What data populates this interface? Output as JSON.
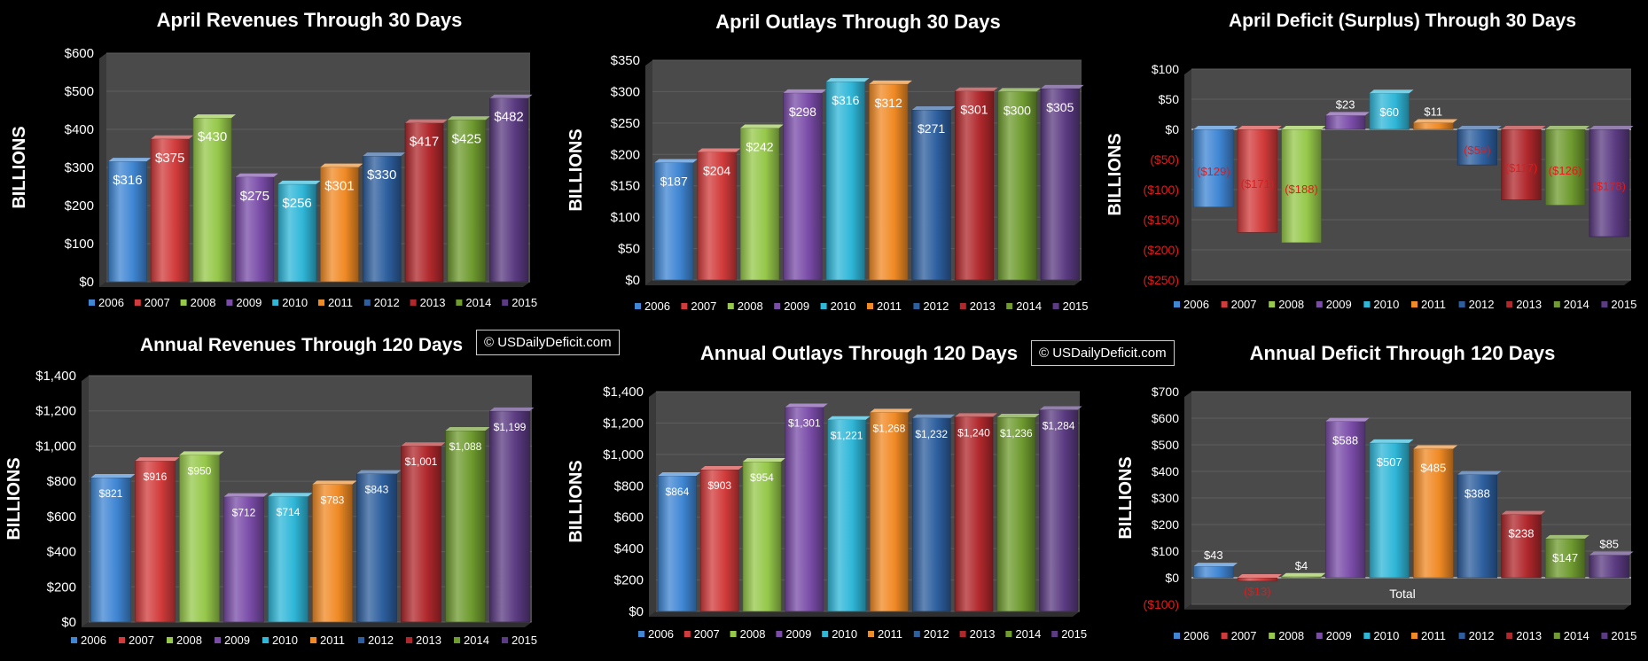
{
  "watermark": "© USDailyDeficit.com",
  "colors": [
    "#3f86d3",
    "#d23b3b",
    "#96c84a",
    "#7a4ca8",
    "#2fb7d8",
    "#f08a24",
    "#2d5f9e",
    "#b0282c",
    "#6f9b2f",
    "#5b3b82"
  ],
  "chart_data": [
    {
      "type": "bar",
      "title": "April Revenues Through 30 Days",
      "ylabel": "BILLIONS",
      "categories": [
        "2006",
        "2007",
        "2008",
        "2009",
        "2010",
        "2011",
        "2012",
        "2013",
        "2014",
        "2015"
      ],
      "values": [
        316,
        375,
        430,
        275,
        256,
        301,
        330,
        417,
        425,
        482
      ],
      "value_labels": [
        "$316",
        "$375",
        "$430",
        "$275",
        "$256",
        "$301",
        "$330",
        "$417",
        "$425",
        "$482"
      ],
      "ylim": [
        0,
        600
      ],
      "yticks": [
        "$0",
        "$100",
        "$200",
        "$300",
        "$400",
        "$500",
        "$600"
      ],
      "legend": [
        "2006",
        "2007",
        "2008",
        "2009",
        "2010",
        "2011",
        "2012",
        "2013",
        "2014",
        "2015"
      ]
    },
    {
      "type": "bar",
      "title": "April Outlays Through 30 Days",
      "ylabel": "BILLIONS",
      "categories": [
        "2006",
        "2007",
        "2008",
        "2009",
        "2010",
        "2011",
        "2012",
        "2013",
        "2014",
        "2015"
      ],
      "values": [
        187,
        204,
        242,
        298,
        316,
        312,
        271,
        301,
        300,
        305
      ],
      "value_labels": [
        "$187",
        "$204",
        "$242",
        "$298",
        "$316",
        "$312",
        "$271",
        "$301",
        "$300",
        "$305"
      ],
      "ylim": [
        0,
        350
      ],
      "yticks": [
        "$0",
        "$50",
        "$100",
        "$150",
        "$200",
        "$250",
        "$300",
        "$350"
      ],
      "legend": [
        "2006",
        "2007",
        "2008",
        "2009",
        "2010",
        "2011",
        "2012",
        "2013",
        "2014",
        "2015"
      ]
    },
    {
      "type": "bar",
      "title": "April Deficit (Surplus) Through 30 Days",
      "ylabel": "BILLIONS",
      "categories": [
        "2006",
        "2007",
        "2008",
        "2009",
        "2010",
        "2011",
        "2012",
        "2013",
        "2014",
        "2015"
      ],
      "values": [
        -129,
        -171,
        -188,
        23,
        60,
        11,
        -59,
        -117,
        -126,
        -178
      ],
      "value_labels": [
        "($129)",
        "($171)",
        "($188)",
        "$23",
        "$60",
        "$11",
        "($59)",
        "($117)",
        "($126)",
        "($178)"
      ],
      "ylim": [
        -250,
        100
      ],
      "yticks": [
        "($250)",
        "($200)",
        "($150)",
        "($100)",
        "($50)",
        "$0",
        "$50",
        "$100"
      ],
      "legend": [
        "2006",
        "2007",
        "2008",
        "2009",
        "2010",
        "2011",
        "2012",
        "2013",
        "2014",
        "2015"
      ]
    },
    {
      "type": "bar",
      "title": "Annual Revenues Through 120 Days",
      "ylabel": "BILLIONS",
      "categories": [
        "2006",
        "2007",
        "2008",
        "2009",
        "2010",
        "2011",
        "2012",
        "2013",
        "2014",
        "2015"
      ],
      "values": [
        821,
        916,
        950,
        712,
        714,
        783,
        843,
        1001,
        1088,
        1199
      ],
      "value_labels": [
        "$821",
        "$916",
        "$950",
        "$712",
        "$714",
        "$783",
        "$843",
        "$1,001",
        "$1,088",
        "$1,199"
      ],
      "ylim": [
        0,
        1400
      ],
      "yticks": [
        "$0",
        "$200",
        "$400",
        "$600",
        "$800",
        "$1,000",
        "$1,200",
        "$1,400"
      ],
      "legend": [
        "2006",
        "2007",
        "2008",
        "2009",
        "2010",
        "2011",
        "2012",
        "2013",
        "2014",
        "2015"
      ]
    },
    {
      "type": "bar",
      "title": "Annual Outlays Through 120 Days",
      "ylabel": "BILLIONS",
      "categories": [
        "2006",
        "2007",
        "2008",
        "2009",
        "2010",
        "2011",
        "2012",
        "2013",
        "2014",
        "2015"
      ],
      "values": [
        864,
        903,
        954,
        1301,
        1221,
        1268,
        1232,
        1240,
        1236,
        1284
      ],
      "value_labels": [
        "$864",
        "$903",
        "$954",
        "$1,301",
        "$1,221",
        "$1,268",
        "$1,232",
        "$1,240",
        "$1,236",
        "$1,284"
      ],
      "ylim": [
        0,
        1400
      ],
      "yticks": [
        "$0",
        "$200",
        "$400",
        "$600",
        "$800",
        "$1,000",
        "$1,200",
        "$1,400"
      ],
      "legend": [
        "2006",
        "2007",
        "2008",
        "2009",
        "2010",
        "2011",
        "2012",
        "2013",
        "2014",
        "2015"
      ]
    },
    {
      "type": "bar",
      "title": "Annual Deficit Through 120 Days",
      "ylabel": "BILLIONS",
      "xlabel": "Total",
      "categories": [
        "2006",
        "2007",
        "2008",
        "2009",
        "2010",
        "2011",
        "2012",
        "2013",
        "2014",
        "2015"
      ],
      "values": [
        43,
        -13,
        4,
        588,
        507,
        485,
        388,
        238,
        147,
        85
      ],
      "value_labels": [
        "$43",
        "($13)",
        "$4",
        "$588",
        "$507",
        "$485",
        "$388",
        "$238",
        "$147",
        "$85"
      ],
      "ylim": [
        -100,
        700
      ],
      "yticks": [
        "($100)",
        "$0",
        "$100",
        "$200",
        "$300",
        "$400",
        "$500",
        "$600",
        "$700"
      ],
      "legend": [
        "2006",
        "2007",
        "2008",
        "2009",
        "2010",
        "2011",
        "2012",
        "2013",
        "2014",
        "2015"
      ]
    }
  ]
}
